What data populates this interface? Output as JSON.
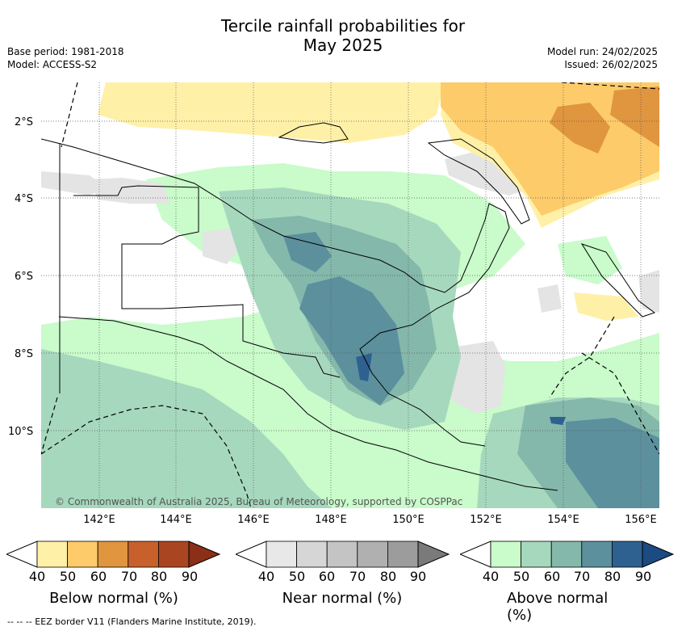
{
  "title": {
    "line1": "Tercile rainfall probabilities for",
    "line2": "May 2025"
  },
  "meta": {
    "base_period": "Base period: 1981-2018",
    "model": "Model: ACCESS-S2",
    "model_run": "Model run: 24/02/2025",
    "issued": "Issued: 26/02/2025"
  },
  "map": {
    "lat_labels": [
      "2°S",
      "4°S",
      "6°S",
      "8°S",
      "10°S"
    ],
    "lon_labels": [
      "142°E",
      "144°E",
      "146°E",
      "148°E",
      "150°E",
      "152°E",
      "154°E",
      "156°E"
    ],
    "copyright": "© Commonwealth of Australia 2025, Bureau of Meteorology, supported by COSPPac"
  },
  "colorbars": [
    {
      "label": "Below normal (%)",
      "ticks": [
        "40",
        "50",
        "60",
        "70",
        "80",
        "90"
      ],
      "colors": [
        "#fff0a8",
        "#fdcb6a",
        "#e0953f",
        "#c8602b",
        "#aa4522",
        "#8b2f18"
      ]
    },
    {
      "label": "Near normal (%)",
      "ticks": [
        "40",
        "50",
        "60",
        "70",
        "80",
        "90"
      ],
      "colors": [
        "#e8e8e8",
        "#d6d6d6",
        "#c4c4c4",
        "#b0b0b0",
        "#9c9c9c",
        "#7a7a7a"
      ]
    },
    {
      "label": "Above normal (%)",
      "ticks": [
        "40",
        "50",
        "60",
        "70",
        "80",
        "90"
      ],
      "colors": [
        "#c9fbcb",
        "#a6d8bd",
        "#84b8ab",
        "#5c909d",
        "#2f6190",
        "#1c4a82"
      ]
    }
  ],
  "footer": "--  --  -- EEZ border V11 (Flanders Marine Institute, 2019)."
}
